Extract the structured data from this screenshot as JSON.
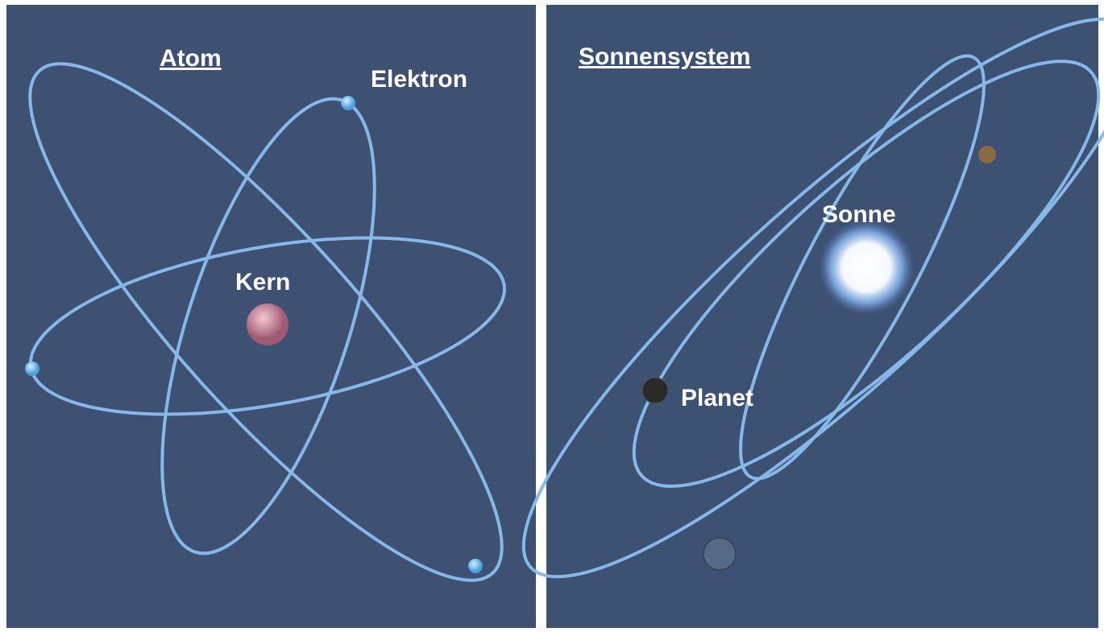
{
  "atom": {
    "title": "Atom",
    "electron_label": "Elektron",
    "nucleus_label": "Kern"
  },
  "solar_system": {
    "title": "Sonnensystem",
    "sun_label": "Sonne",
    "planet_label": "Planet"
  }
}
